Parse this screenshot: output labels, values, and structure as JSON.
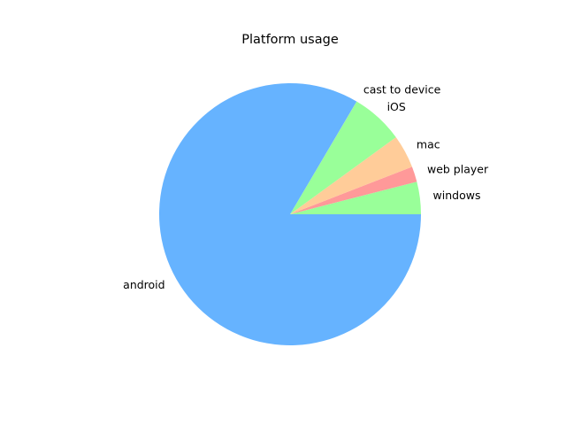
{
  "chart_data": {
    "type": "pie",
    "title": "Platform usage",
    "slices": [
      {
        "label": "windows",
        "value": 4.0,
        "color": "#99ff99"
      },
      {
        "label": "web player",
        "value": 1.9,
        "color": "#ff9999"
      },
      {
        "label": "mac",
        "value": 4.1,
        "color": "#ffcc99"
      },
      {
        "label": "iOS",
        "value": 6.5,
        "color": "#99ff99"
      },
      {
        "label": "cast to device",
        "value": 0.01,
        "color": "#ffcc99"
      },
      {
        "label": "android",
        "value": 83.5,
        "color": "#66b3ff"
      }
    ],
    "start_angle_deg": 0,
    "direction": "counterclockwise",
    "legend": "none"
  }
}
